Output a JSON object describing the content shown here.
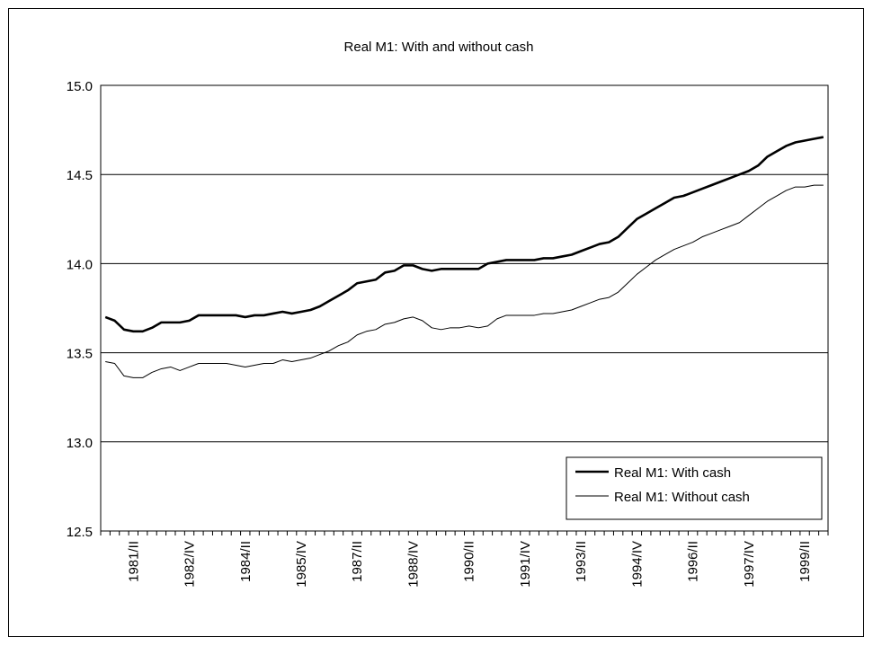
{
  "chart_data": {
    "type": "line",
    "title": "Real M1: With and without cash",
    "xlabel": "",
    "ylabel": "",
    "ylim": [
      12.5,
      15.0
    ],
    "yticks": [
      "12.5",
      "13.0",
      "13.5",
      "14.0",
      "14.5",
      "15.0"
    ],
    "grid": "horizontal",
    "legend_position": "bottom-right",
    "x": [
      "1980/III",
      "1980/IV",
      "1981/I",
      "1981/II",
      "1981/III",
      "1981/IV",
      "1982/I",
      "1982/II",
      "1982/III",
      "1982/IV",
      "1983/I",
      "1983/II",
      "1983/III",
      "1983/IV",
      "1984/I",
      "1984/II",
      "1984/III",
      "1984/IV",
      "1985/I",
      "1985/II",
      "1985/III",
      "1985/IV",
      "1986/I",
      "1986/II",
      "1986/III",
      "1986/IV",
      "1987/I",
      "1987/II",
      "1987/III",
      "1987/IV",
      "1988/I",
      "1988/II",
      "1988/III",
      "1988/IV",
      "1989/I",
      "1989/II",
      "1989/III",
      "1989/IV",
      "1990/I",
      "1990/II",
      "1990/III",
      "1990/IV",
      "1991/I",
      "1991/II",
      "1991/III",
      "1991/IV",
      "1992/I",
      "1992/II",
      "1992/III",
      "1992/IV",
      "1993/I",
      "1993/II",
      "1993/III",
      "1993/IV",
      "1994/I",
      "1994/II",
      "1994/III",
      "1994/IV",
      "1995/I",
      "1995/II",
      "1995/III",
      "1995/IV",
      "1996/I",
      "1996/II",
      "1996/III",
      "1996/IV",
      "1997/I",
      "1997/II",
      "1997/III",
      "1997/IV",
      "1998/I",
      "1998/II",
      "1998/III",
      "1998/IV",
      "1999/I",
      "1999/II",
      "1999/III",
      "1999/IV"
    ],
    "x_tick_labels": [
      "1981/II",
      "1982/IV",
      "1984/II",
      "1985/IV",
      "1987/II",
      "1988/IV",
      "1990/II",
      "1991/IV",
      "1993/II",
      "1994/IV",
      "1996/II",
      "1997/IV",
      "1999/II"
    ],
    "series": [
      {
        "name": "Real M1: With cash",
        "values": [
          13.7,
          13.68,
          13.63,
          13.62,
          13.62,
          13.64,
          13.67,
          13.67,
          13.67,
          13.68,
          13.71,
          13.71,
          13.71,
          13.71,
          13.71,
          13.7,
          13.71,
          13.71,
          13.72,
          13.73,
          13.72,
          13.73,
          13.74,
          13.76,
          13.79,
          13.82,
          13.85,
          13.89,
          13.9,
          13.91,
          13.95,
          13.96,
          13.99,
          13.99,
          13.97,
          13.96,
          13.97,
          13.97,
          13.97,
          13.97,
          13.97,
          14.0,
          14.01,
          14.02,
          14.02,
          14.02,
          14.02,
          14.03,
          14.03,
          14.04,
          14.05,
          14.07,
          14.09,
          14.11,
          14.12,
          14.15,
          14.2,
          14.25,
          14.28,
          14.31,
          14.34,
          14.37,
          14.38,
          14.4,
          14.42,
          14.44,
          14.46,
          14.48,
          14.5,
          14.52,
          14.55,
          14.6,
          14.63,
          14.66,
          14.68,
          14.69,
          14.7,
          14.71
        ]
      },
      {
        "name": "Real M1: Without cash",
        "values": [
          13.45,
          13.44,
          13.37,
          13.36,
          13.36,
          13.39,
          13.41,
          13.42,
          13.4,
          13.42,
          13.44,
          13.44,
          13.44,
          13.44,
          13.43,
          13.42,
          13.43,
          13.44,
          13.44,
          13.46,
          13.45,
          13.46,
          13.47,
          13.49,
          13.51,
          13.54,
          13.56,
          13.6,
          13.62,
          13.63,
          13.66,
          13.67,
          13.69,
          13.7,
          13.68,
          13.64,
          13.63,
          13.64,
          13.64,
          13.65,
          13.64,
          13.65,
          13.69,
          13.71,
          13.71,
          13.71,
          13.71,
          13.72,
          13.72,
          13.73,
          13.74,
          13.76,
          13.78,
          13.8,
          13.81,
          13.84,
          13.89,
          13.94,
          13.98,
          14.02,
          14.05,
          14.08,
          14.1,
          14.12,
          14.15,
          14.17,
          14.19,
          14.21,
          14.23,
          14.27,
          14.31,
          14.35,
          14.38,
          14.41,
          14.43,
          14.43,
          14.44,
          14.44
        ]
      }
    ]
  }
}
